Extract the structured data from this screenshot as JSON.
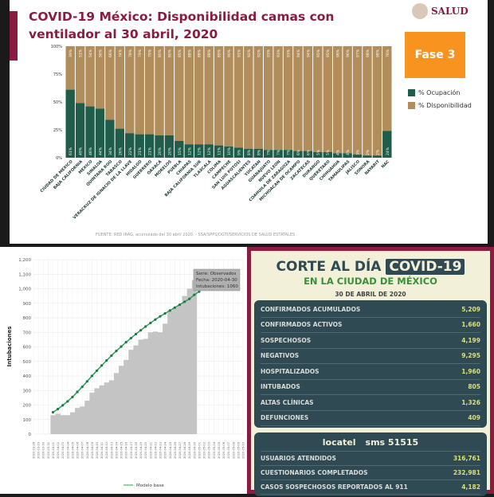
{
  "top": {
    "title": "COVID-19 México: Disponibilidad camas con ventilador al 30 abril, 2020",
    "logo": "SALUD",
    "badge": "Fase 3",
    "source": "FUENTE: RED IRAG, acumulado del 30 abril 2020. - SSA/SPPS/DGTI/SERVICIOS DE SALUD ESTATALES"
  },
  "chart_data": [
    {
      "type": "bar",
      "stacked": true,
      "title": "COVID-19 México: Disponibilidad camas con ventilador al 30 abril, 2020",
      "yticks": [
        "100%",
        "75%",
        "50%",
        "25%",
        "0%"
      ],
      "ylim": [
        0,
        100
      ],
      "legend_position": "right",
      "categories": [
        "CIUDAD DE MEXICO",
        "BAJA CALIFORNIA",
        "MEXICO",
        "SINALOA",
        "QUINTANA ROO",
        "TABASCO",
        "VERACRUZ DE IGNACIO DE LA LLAVE",
        "HIDALGO",
        "GUERRERO",
        "OAXACA",
        "MORELOS",
        "PUEBLA",
        "CHIAPAS",
        "BAJA CALIFORNIA SUR",
        "TLAXCALA",
        "COLIMA",
        "CAMPECHE",
        "SAN LUIS POTOSI",
        "AGUASCALIENTES",
        "YUCATAN",
        "GUANAJUATO",
        "NUEVO LEON",
        "COAHUILA DE ZARAGOZA",
        "MICHOACAN DE OCAMPO",
        "ZACATECAS",
        "DURANGO",
        "QUERETARO",
        "CHIHUAHUA",
        "TAMAULIPAS",
        "JALISCO",
        "SONORA",
        "NAYARIT",
        "NAC"
      ],
      "series": [
        {
          "name": "% Ocupación",
          "color": "#1f5c4a",
          "values": [
            61,
            49,
            46,
            44,
            34,
            26,
            22,
            21,
            21,
            20,
            20,
            15,
            12,
            12,
            12,
            11,
            10,
            9,
            8,
            8,
            7,
            7,
            7,
            6,
            6,
            5,
            5,
            4,
            4,
            3,
            2,
            2,
            24
          ]
        },
        {
          "name": "% Disponibilidad",
          "color": "#b08d5a",
          "values": [
            39,
            51,
            54,
            56,
            66,
            74,
            78,
            79,
            79,
            80,
            80,
            85,
            88,
            88,
            88,
            89,
            90,
            91,
            92,
            92,
            93,
            93,
            93,
            94,
            94,
            95,
            95,
            96,
            96,
            97,
            98,
            98,
            76
          ]
        }
      ]
    },
    {
      "type": "bar+line",
      "ylabel": "Intubaciones",
      "ylim": [
        0,
        1200
      ],
      "yticks": [
        "0",
        "100",
        "200",
        "300",
        "400",
        "500",
        "600",
        "700",
        "800",
        "900",
        "1,000",
        "1,100",
        "1,200"
      ],
      "x_start": "2020-03-28",
      "x_end": "2020-05-10",
      "observed": {
        "name": "Observados",
        "start": "2020-04-01",
        "color": "#c4c4c4",
        "values": [
          130,
          140,
          130,
          130,
          150,
          180,
          190,
          230,
          285,
          315,
          335,
          355,
          370,
          420,
          470,
          510,
          580,
          610,
          650,
          655,
          700,
          705,
          700,
          760,
          850,
          870,
          890,
          950,
          1000,
          1060
        ]
      },
      "model": {
        "name": "Modelo base",
        "start": "2020-04-01",
        "color": "#2ca05a",
        "values": [
          150,
          172,
          198,
          225,
          255,
          290,
          325,
          362,
          400,
          436,
          472,
          506,
          540,
          572,
          602,
          632,
          660,
          688,
          714,
          740,
          764,
          788,
          810,
          830,
          850,
          870,
          890,
          910,
          930,
          958,
          980
        ]
      },
      "tooltip": {
        "line1": "Serie: Observados",
        "line2": "Fecha: 2020-04-30",
        "line3": "Intubaciones: 1060"
      },
      "legend": "Modelo base"
    }
  ],
  "corte": {
    "title_a": "CORTE AL DÍA",
    "title_b": "COVID-19",
    "subtitle": "EN LA CIUDAD DE MÉXICO",
    "date": "30 DE ABRIL DE 2020",
    "rows": [
      {
        "label": "CONFIRMADOS ACUMULADOS",
        "value": "5,209"
      },
      {
        "label": "CONFIRMADOS ACTIVOS",
        "value": "1,660"
      },
      {
        "label": "SOSPECHOSOS",
        "value": "4,199"
      },
      {
        "label": "NEGATIVOS",
        "value": "9,295"
      },
      {
        "label": "HOSPITALIZADOS",
        "value": "1,960"
      },
      {
        "label": "INTUBADOS",
        "value": "805"
      },
      {
        "label": "ALTAS CLÍNICAS",
        "value": "1,326"
      },
      {
        "label": "DEFUNCIONES",
        "value": "409"
      }
    ],
    "locatel": "locatel",
    "sms": "sms  51515",
    "rows2": [
      {
        "label": "USUARIOS ATENDIDOS",
        "value": "316,761"
      },
      {
        "label": "CUESTIONARIOS COMPLETADOS",
        "value": "232,981"
      },
      {
        "label": "CASOS SOSPECHOSOS REPORTADOS AL 911",
        "value": "4,182"
      }
    ]
  }
}
